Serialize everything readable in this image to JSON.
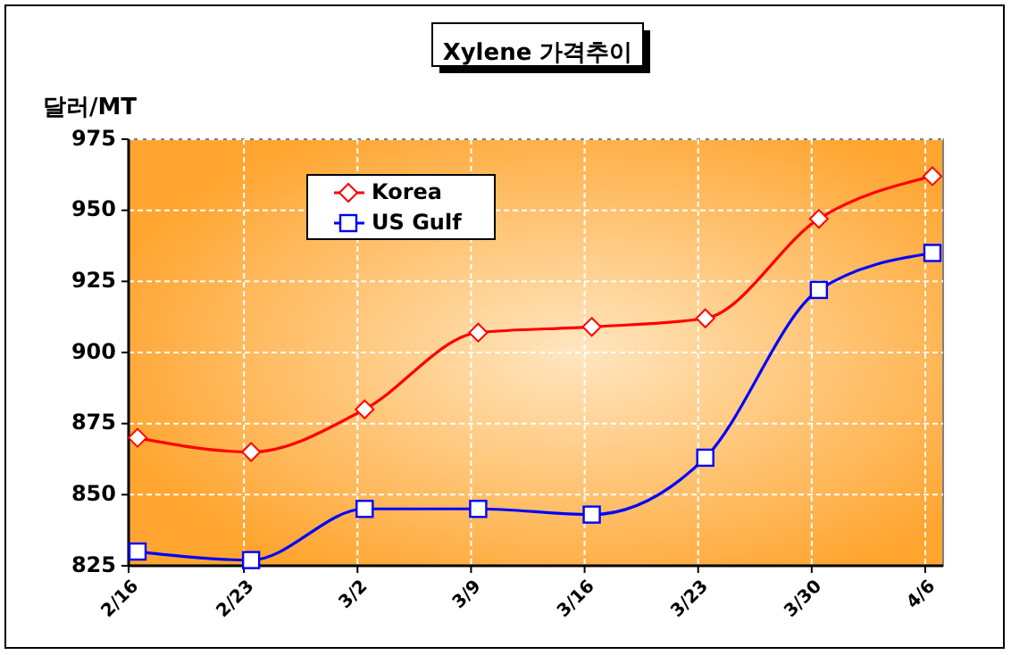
{
  "chart_data": {
    "type": "line",
    "title": "Xylene 가격추이",
    "ylabel": "달러/MT",
    "categories": [
      "2/16",
      "2/23",
      "3/2",
      "3/9",
      "3/16",
      "3/23",
      "3/30",
      "4/6"
    ],
    "series": [
      {
        "name": "Korea",
        "color": "#ff0000",
        "marker": "diamond",
        "values": [
          870,
          865,
          880,
          907,
          909,
          912,
          947,
          962
        ]
      },
      {
        "name": "US Gulf",
        "color": "#0000ff",
        "marker": "square",
        "values": [
          830,
          827,
          845,
          845,
          843,
          863,
          922,
          935
        ]
      }
    ],
    "ylim": [
      825,
      975
    ],
    "yticks": [
      825,
      850,
      875,
      900,
      925,
      950,
      975
    ],
    "grid": true,
    "legend": "top left",
    "line_style": "solid"
  }
}
